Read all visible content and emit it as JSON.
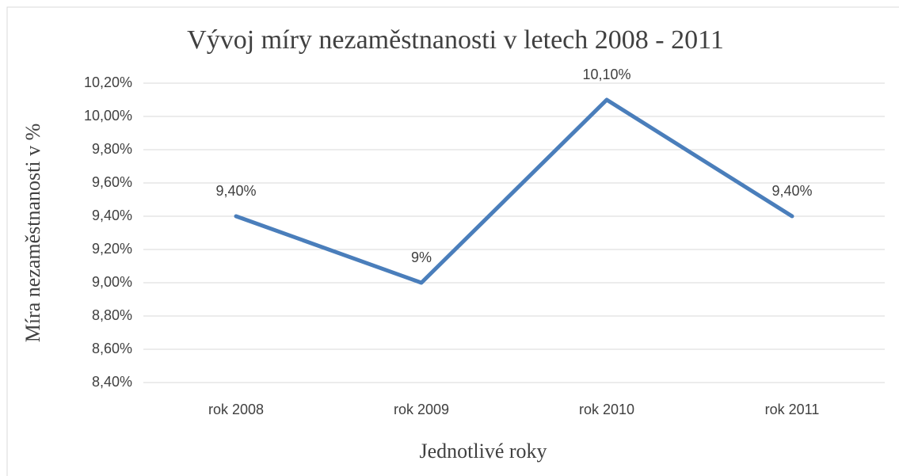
{
  "chart_data": {
    "type": "line",
    "title": "Vývoj míry nezaměstnanosti v letech 2008 - 2011",
    "x_label": "Jednotlivé roky",
    "y_label": "Míra nezaměstnanosti v %",
    "categories": [
      "rok 2008",
      "rok 2009",
      "rok 2010",
      "rok 2011"
    ],
    "series": [
      {
        "name": "Míra nezaměstnanosti",
        "color": "#4a7ebb",
        "values": [
          9.4,
          9.0,
          10.1,
          9.4
        ],
        "value_labels": [
          "9,40%",
          "9%",
          "10,10%",
          "9,40%"
        ]
      }
    ],
    "ylim": [
      8.4,
      10.2
    ],
    "yticks": [
      {
        "value": 8.4,
        "label": "8,40%"
      },
      {
        "value": 8.6,
        "label": "8,60%"
      },
      {
        "value": 8.8,
        "label": "8,80%"
      },
      {
        "value": 9.0,
        "label": "9,00%"
      },
      {
        "value": 9.2,
        "label": "9,20%"
      },
      {
        "value": 9.4,
        "label": "9,40%"
      },
      {
        "value": 9.6,
        "label": "9,60%"
      },
      {
        "value": 9.8,
        "label": "9,80%"
      },
      {
        "value": 10.0,
        "label": "10,00%"
      },
      {
        "value": 10.2,
        "label": "10,20%"
      }
    ],
    "grid": true
  }
}
